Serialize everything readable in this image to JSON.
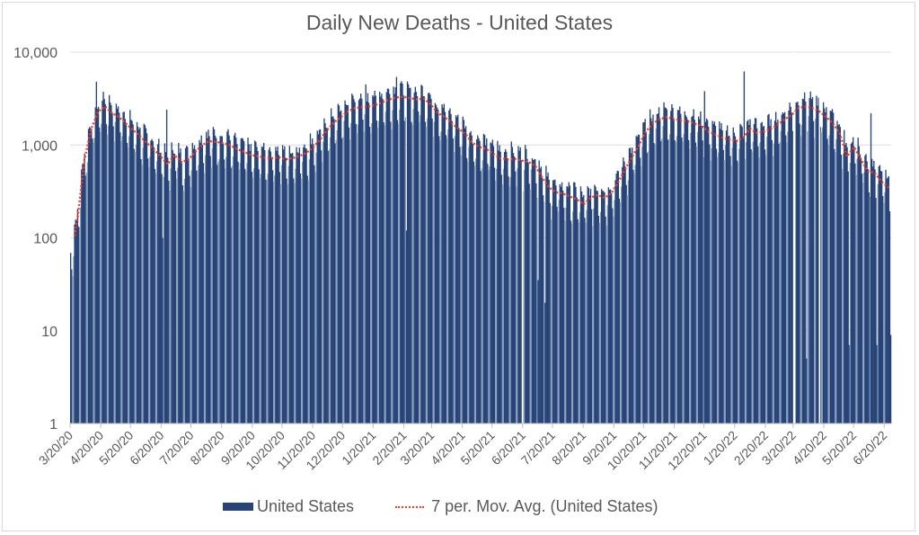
{
  "chart_data": {
    "type": "bar",
    "title": "Daily New Deaths - United States",
    "xlabel": "",
    "ylabel": "",
    "y_scale": "log",
    "ylim": [
      1,
      10000
    ],
    "y_ticks": [
      "1",
      "10",
      "100",
      "1,000",
      "10,000"
    ],
    "y_tick_values": [
      1,
      10,
      100,
      1000,
      10000
    ],
    "x_start_date": "2020-03-20",
    "x_end_date": "2022-06-26",
    "x_tick_labels": [
      "3/20/20",
      "4/20/20",
      "5/20/20",
      "6/20/20",
      "7/20/20",
      "8/20/20",
      "9/20/20",
      "10/20/20",
      "11/20/20",
      "12/20/20",
      "1/20/21",
      "2/20/21",
      "3/20/21",
      "4/20/21",
      "5/20/21",
      "6/20/21",
      "7/20/21",
      "8/20/21",
      "9/20/21",
      "10/20/21",
      "11/20/21",
      "12/20/21",
      "1/20/22",
      "2/20/22",
      "3/20/22",
      "4/20/22",
      "5/20/22",
      "6/20/22"
    ],
    "grid": true,
    "legend_position": "bottom",
    "series": [
      {
        "name": "United States",
        "kind": "bar",
        "color": "#264478",
        "note": "daily values = weekly level x weekday factor; spikes/dips listed separately",
        "weekday_factors": [
          0.55,
          0.75,
          1.35,
          1.3,
          1.25,
          1.15,
          0.65
        ],
        "spikes": [
          {
            "date": "2020-04-15",
            "value": 4800
          },
          {
            "date": "2020-06-25",
            "value": 2400
          },
          {
            "date": "2020-06-21",
            "value": 100
          },
          {
            "date": "2021-01-12",
            "value": 4500
          },
          {
            "date": "2021-02-12",
            "value": 5400
          },
          {
            "date": "2021-02-22",
            "value": 120
          },
          {
            "date": "2021-06-19",
            "value": 1
          },
          {
            "date": "2021-07-05",
            "value": 35
          },
          {
            "date": "2021-07-12",
            "value": 20
          },
          {
            "date": "2021-12-20",
            "value": 3800
          },
          {
            "date": "2022-01-29",
            "value": 6200
          },
          {
            "date": "2022-03-20",
            "value": 1
          },
          {
            "date": "2022-03-21",
            "value": 1
          },
          {
            "date": "2022-04-02",
            "value": 5
          },
          {
            "date": "2022-04-15",
            "value": 1
          },
          {
            "date": "2022-05-15",
            "value": 7
          },
          {
            "date": "2022-06-06",
            "value": 2200
          },
          {
            "date": "2022-06-12",
            "value": 7
          },
          {
            "date": "2022-06-26",
            "value": 9
          }
        ]
      },
      {
        "name": "7 per. Mov. Avg. (United States)",
        "kind": "line",
        "color": "#ff3b1f",
        "style": "dotted",
        "weekly_dates_start": "2020-03-27",
        "weekly_values": [
          160,
          700,
          1500,
          2300,
          2600,
          2200,
          2000,
          1700,
          1450,
          1250,
          1050,
          900,
          750,
          620,
          780,
          650,
          700,
          850,
          1000,
          1100,
          1080,
          1050,
          1000,
          900,
          850,
          780,
          760,
          730,
          720,
          740,
          700,
          720,
          760,
          820,
          950,
          1150,
          1450,
          1750,
          2000,
          2300,
          2500,
          2550,
          2600,
          2700,
          2900,
          3100,
          3250,
          3300,
          3200,
          3100,
          3150,
          2700,
          2200,
          2000,
          1700,
          1500,
          1300,
          1050,
          950,
          900,
          800,
          720,
          700,
          710,
          680,
          660,
          600,
          450,
          350,
          310,
          300,
          280,
          260,
          230,
          270,
          290,
          270,
          300,
          400,
          550,
          750,
          1000,
          1400,
          1700,
          1900,
          2000,
          1900,
          1850,
          1800,
          1700,
          1600,
          1400,
          1300,
          1200,
          1150,
          1100,
          1200,
          1500,
          1350,
          1400,
          1500,
          1650,
          1900,
          2100,
          2500,
          2600,
          2500,
          2300,
          2000,
          1700,
          1300,
          750,
          950,
          700,
          520,
          500,
          400,
          350,
          330,
          330,
          350,
          550,
          420,
          300,
          360,
          380,
          330,
          450,
          300,
          400
        ]
      }
    ]
  },
  "legend": {
    "bar_label": "United States",
    "line_label": "7 per. Mov. Avg. (United States)"
  }
}
